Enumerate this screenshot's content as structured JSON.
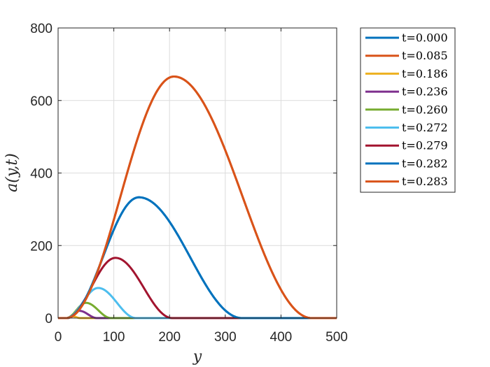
{
  "chart_data": {
    "type": "line",
    "xlabel": "y",
    "ylabel": "a(y,t)",
    "xlim": [
      0,
      500
    ],
    "ylim": [
      0,
      800
    ],
    "xticks": [
      0,
      100,
      200,
      300,
      400,
      500
    ],
    "yticks": [
      0,
      200,
      400,
      600,
      800
    ],
    "grid": true,
    "legend_position": "outside-top-right",
    "series": [
      {
        "name": "t=0.000",
        "color": "#0072BD",
        "peak_x": 145,
        "peak_y": 333,
        "start_x": 15,
        "end_x": 330
      },
      {
        "name": "t=0.085",
        "color": "#D95319",
        "peak_x": 208,
        "peak_y": 666,
        "start_x": 15,
        "end_x": 455
      },
      {
        "name": "t=0.186",
        "color": "#EDB120",
        "peak_x": 25,
        "peak_y": 5,
        "start_x": 15,
        "end_x": 40
      },
      {
        "name": "t=0.236",
        "color": "#7E2F8E",
        "peak_x": 38,
        "peak_y": 20,
        "start_x": 15,
        "end_x": 70
      },
      {
        "name": "t=0.260",
        "color": "#77AC30",
        "peak_x": 50,
        "peak_y": 42,
        "start_x": 15,
        "end_x": 95
      },
      {
        "name": "t=0.272",
        "color": "#4DBEEE",
        "peak_x": 72,
        "peak_y": 83,
        "start_x": 15,
        "end_x": 140
      },
      {
        "name": "t=0.279",
        "color": "#A2142F",
        "peak_x": 103,
        "peak_y": 166,
        "start_x": 15,
        "end_x": 205
      },
      {
        "name": "t=0.282",
        "color": "#0072BD",
        "peak_x": 145,
        "peak_y": 333,
        "start_x": 15,
        "end_x": 330
      },
      {
        "name": "t=0.283",
        "color": "#D95319",
        "peak_x": 208,
        "peak_y": 666,
        "start_x": 15,
        "end_x": 455
      }
    ]
  }
}
